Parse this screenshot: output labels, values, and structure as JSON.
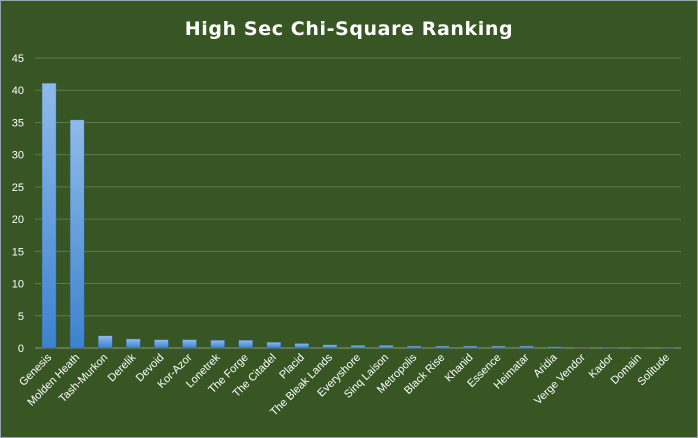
{
  "chart_data": {
    "type": "bar",
    "title": "High Sec Chi-Square Ranking",
    "xlabel": "",
    "ylabel": "",
    "ylim": [
      0,
      45
    ],
    "yticks": [
      0,
      5,
      10,
      15,
      20,
      25,
      30,
      35,
      40,
      45
    ],
    "grid": true,
    "legend": "none",
    "colors": {
      "background": "#375623",
      "bar_top": "#8fbbea",
      "bar_bottom": "#3d82cf",
      "grid": "#5e7a4c",
      "text": "#ffffff"
    },
    "categories": [
      "Genesis",
      "Molden Heath",
      "Tash-Murkon",
      "Derelik",
      "Devoid",
      "Kor-Azor",
      "Lonetrek",
      "The Forge",
      "The Citadel",
      "Placid",
      "The Bleak Lands",
      "Everyshore",
      "Sinq Laison",
      "Metropolis",
      "Black Rise",
      "Khanid",
      "Essence",
      "Heimatar",
      "Aridia",
      "Verge Vendor",
      "Kador",
      "Domain",
      "Solitude"
    ],
    "values": [
      41.1,
      35.4,
      1.9,
      1.4,
      1.3,
      1.3,
      1.2,
      1.2,
      0.9,
      0.7,
      0.5,
      0.4,
      0.4,
      0.3,
      0.3,
      0.3,
      0.3,
      0.3,
      0.2,
      0.1,
      0.1,
      0.1,
      0.1
    ]
  }
}
